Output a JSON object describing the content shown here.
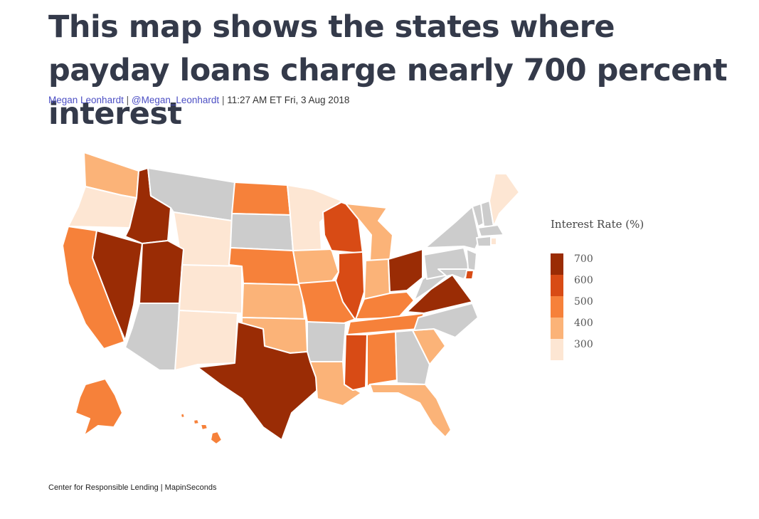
{
  "headline": "This map shows the states where payday loans charge nearly 700 percent interest",
  "byline": {
    "author": "Megan Leonhardt",
    "handle": "@Megan_Leonhardt",
    "separator": "|",
    "timestamp": "11:27 AM ET Fri, 3 Aug 2018"
  },
  "legend": {
    "title": "Interest Rate (%)",
    "items": [
      {
        "label": "700",
        "color": "#9a2c05"
      },
      {
        "label": "600",
        "color": "#d84b15"
      },
      {
        "label": "500",
        "color": "#f6813a"
      },
      {
        "label": "400",
        "color": "#fbb378"
      },
      {
        "label": "300",
        "color": "#fde6d3"
      }
    ]
  },
  "colors": {
    "no_data": "#cccccc",
    "border": "#ffffff",
    "link": "#4c4fc4",
    "headline": "#343a4a"
  },
  "state_rates": {
    "ID": 700,
    "NV": 700,
    "UT": 700,
    "TX": 700,
    "OH": 700,
    "VA": 700,
    "WI": 600,
    "IL": 600,
    "MS": 600,
    "DE": 600,
    "CA": 500,
    "ND": 500,
    "NE": 500,
    "MO": 500,
    "KY": 500,
    "TN": 500,
    "AL": 500,
    "AK": 500,
    "HI": 500,
    "WA": 400,
    "KS": 400,
    "OK": 400,
    "IA": 400,
    "MI": 400,
    "IN": 400,
    "LA": 400,
    "SC": 400,
    "FL": 400,
    "OR": 300,
    "WY": 300,
    "CO": 300,
    "NM": 300,
    "MN": 300,
    "ME": 300,
    "RI": 300,
    "MT": null,
    "SD": null,
    "AZ": null,
    "AR": null,
    "GA": null,
    "NC": null,
    "WV": null,
    "PA": null,
    "NY": null,
    "VT": null,
    "NH": null,
    "MA": null,
    "CT": null,
    "NJ": null,
    "MD": null
  },
  "source": "Center for Responsible Lending | MapinSeconds"
}
